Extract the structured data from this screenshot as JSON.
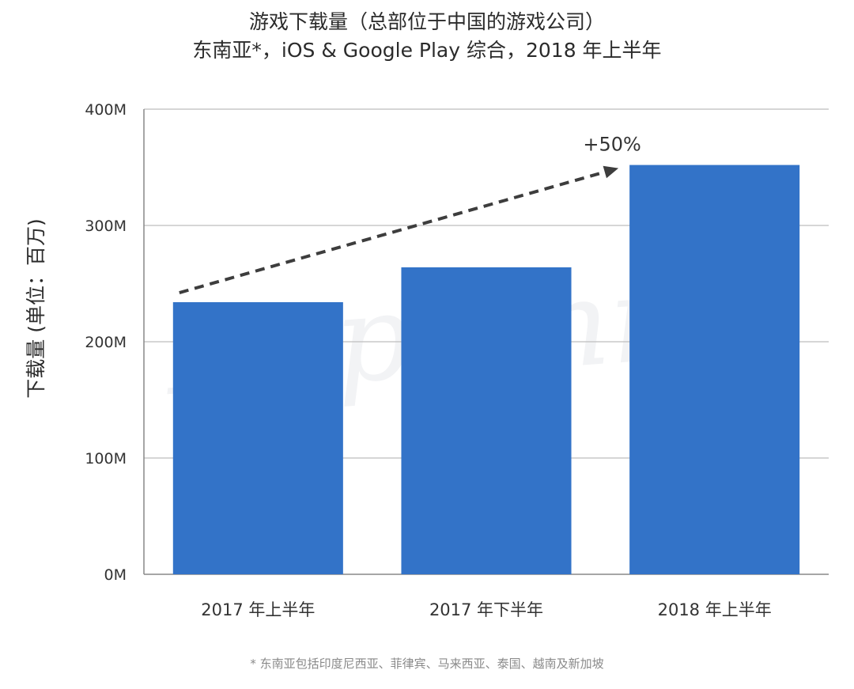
{
  "chart_data": {
    "type": "bar",
    "title": "游戏下载量（总部位于中国的游戏公司）",
    "subtitle": "东南亚*，iOS & Google Play 综合，2018 年上半年",
    "ylabel": "下载量 (单位：百万)",
    "xlabel": "",
    "categories": [
      "2017 年上半年",
      "2017 年下半年",
      "2018 年上半年"
    ],
    "values": [
      234,
      264,
      352
    ],
    "ylim": [
      0,
      400
    ],
    "yticks": [
      0,
      100,
      200,
      300,
      400
    ],
    "ytick_labels": [
      "0M",
      "100M",
      "200M",
      "300M",
      "400M"
    ],
    "bar_color": "#3373c8",
    "grid": true,
    "annotation": "+50%",
    "footnote": "* 东南亚包括印度尼西亚、菲律宾、马来西亚、泰国、越南及新加坡"
  },
  "watermark": "App Annie",
  "colors": {
    "bar": "#3373c8",
    "grid": "#c8c8c8",
    "axis": "#888888",
    "arrow": "#3d3d3d",
    "watermark": "#f2f3f5"
  }
}
